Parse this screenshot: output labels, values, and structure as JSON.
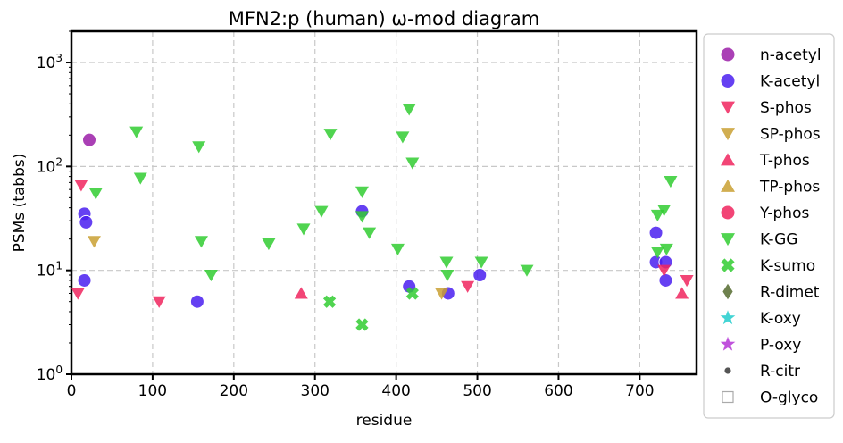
{
  "chart_data": {
    "type": "scatter",
    "title": "MFN2:p (human) ω-mod diagram",
    "xlabel": "residue",
    "ylabel": "PSMs (tabbs)",
    "xlim": [
      0,
      770
    ],
    "ylim": [
      1,
      2000
    ],
    "yscale": "log",
    "grid": true,
    "legend_position": "outside-right",
    "x_ticks": [
      0,
      100,
      200,
      300,
      400,
      500,
      600,
      700
    ],
    "y_ticks": [
      {
        "value": 1,
        "label": "10^0"
      },
      {
        "value": 10,
        "label": "10^1"
      },
      {
        "value": 100,
        "label": "10^2"
      },
      {
        "value": 1000,
        "label": "10^3"
      }
    ],
    "series": [
      {
        "name": "n-acetyl",
        "marker": "circle",
        "color": "#9b1fa8",
        "points": [
          [
            22,
            180
          ]
        ]
      },
      {
        "name": "K-acetyl",
        "marker": "circle",
        "color": "#4a1ff0",
        "points": [
          [
            16,
            8
          ],
          [
            16,
            35
          ],
          [
            18,
            29
          ],
          [
            155,
            5
          ],
          [
            358,
            37
          ],
          [
            416,
            7
          ],
          [
            464,
            6
          ],
          [
            503,
            9
          ],
          [
            720,
            23
          ],
          [
            720,
            12
          ],
          [
            732,
            12
          ],
          [
            732,
            8
          ]
        ]
      },
      {
        "name": "S-phos",
        "marker": "triangle-down",
        "color": "#f0245e",
        "points": [
          [
            8,
            6
          ],
          [
            12,
            66
          ],
          [
            108,
            5
          ],
          [
            488,
            7
          ],
          [
            730,
            10
          ],
          [
            758,
            8
          ]
        ]
      },
      {
        "name": "SP-phos",
        "marker": "triangle-down",
        "color": "#c9a032",
        "points": [
          [
            28,
            19
          ],
          [
            456,
            6
          ]
        ]
      },
      {
        "name": "T-phos",
        "marker": "triangle-up",
        "color": "#f0245e",
        "points": [
          [
            283,
            6
          ],
          [
            752,
            6
          ]
        ]
      },
      {
        "name": "TP-phos",
        "marker": "triangle-up",
        "color": "#c9a032",
        "points": []
      },
      {
        "name": "Y-phos",
        "marker": "circle",
        "color": "#f0245e",
        "points": []
      },
      {
        "name": "K-GG",
        "marker": "triangle-down",
        "color": "#31cc31",
        "points": [
          [
            30,
            55
          ],
          [
            80,
            215
          ],
          [
            85,
            77
          ],
          [
            157,
            155
          ],
          [
            160,
            19
          ],
          [
            172,
            9
          ],
          [
            243,
            18
          ],
          [
            286,
            25
          ],
          [
            308,
            37
          ],
          [
            319,
            205
          ],
          [
            358,
            57
          ],
          [
            358,
            33
          ],
          [
            367,
            23
          ],
          [
            402,
            16
          ],
          [
            408,
            192
          ],
          [
            416,
            355
          ],
          [
            420,
            108
          ],
          [
            462,
            12
          ],
          [
            463,
            9
          ],
          [
            505,
            12
          ],
          [
            561,
            10
          ],
          [
            722,
            34
          ],
          [
            722,
            15
          ],
          [
            730,
            38
          ],
          [
            733,
            16
          ],
          [
            738,
            72
          ]
        ]
      },
      {
        "name": "K-sumo",
        "marker": "x",
        "color": "#31cc31",
        "points": [
          [
            318,
            5
          ],
          [
            358,
            3
          ],
          [
            420,
            6
          ]
        ]
      },
      {
        "name": "R-dimet",
        "marker": "diamond",
        "color": "#556b2f",
        "points": []
      },
      {
        "name": "K-oxy",
        "marker": "star",
        "color": "#22cccc",
        "points": []
      },
      {
        "name": "P-oxy",
        "marker": "star",
        "color": "#b534d6",
        "points": []
      },
      {
        "name": "R-citr",
        "marker": "dot",
        "color": "#555555",
        "points": []
      },
      {
        "name": "O-glyco",
        "marker": "square-open",
        "color": "#aaaaaa",
        "points": []
      }
    ]
  }
}
